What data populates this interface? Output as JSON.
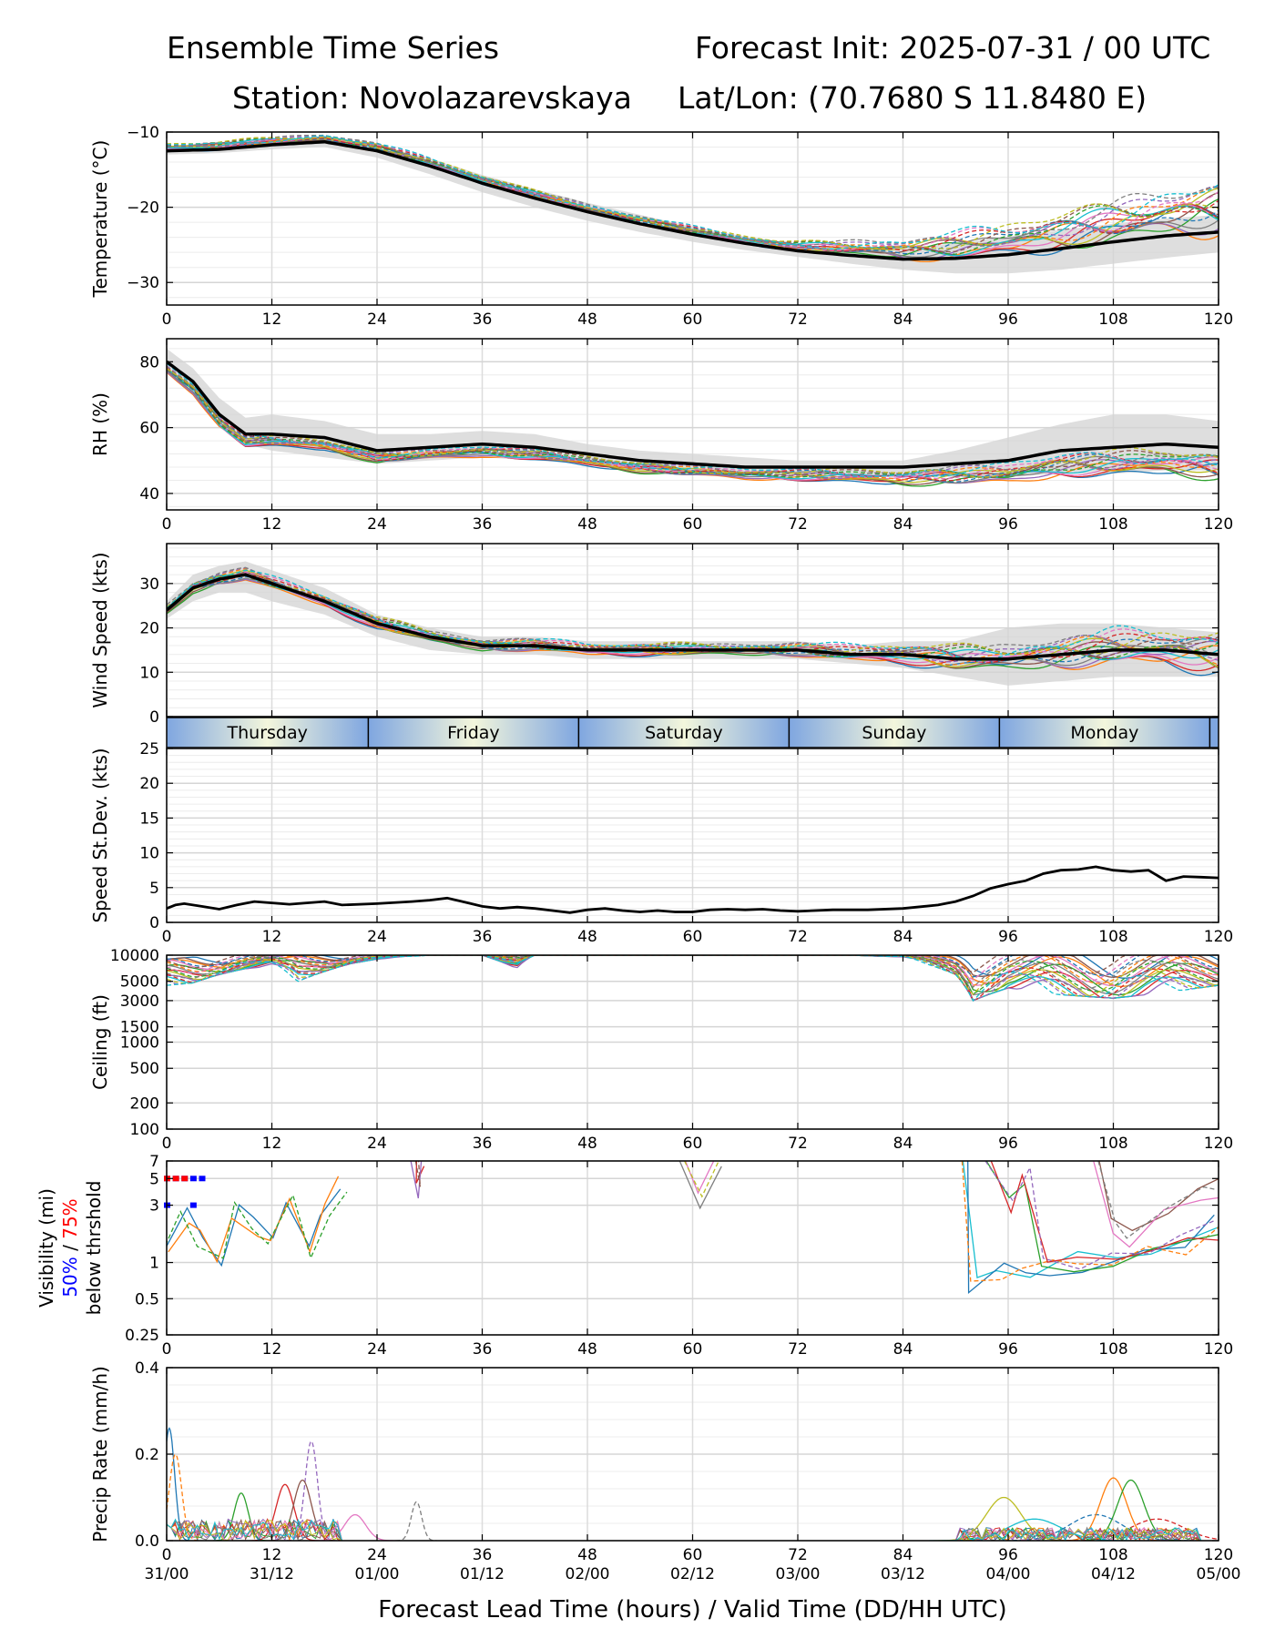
{
  "header": {
    "left_title": "Ensemble Time Series",
    "right_title": "Forecast Init: 2025-07-31 / 00 UTC",
    "station": "Station: Novolazarevskaya",
    "latlon": "Lat/Lon: (70.7680 S 11.8480 E)"
  },
  "colors": {
    "mean": "#000000",
    "spread_fill": "#d3d3d3",
    "members": [
      "#1f77b4",
      "#ff7f0e",
      "#2ca02c",
      "#d62728",
      "#9467bd",
      "#8c564b",
      "#e377c2",
      "#7f7f7f",
      "#bcbd22",
      "#17becf"
    ],
    "day_band_edge": "#7fa6e0",
    "day_band_mid": "#f3f6dc",
    "vis_50": "#0000ff",
    "vis_75": "#ff0000"
  },
  "x_axis": {
    "lead_ticks": [
      "0",
      "12",
      "24",
      "36",
      "48",
      "60",
      "72",
      "84",
      "96",
      "108",
      "120"
    ],
    "valid_ticks": [
      "31/00",
      "31/12",
      "01/00",
      "01/12",
      "02/00",
      "02/12",
      "03/00",
      "03/12",
      "04/00",
      "04/12",
      "05/00"
    ],
    "xlabel": "Forecast Lead Time (hours) / Valid Time (DD/HH UTC)"
  },
  "day_labels": [
    "Thursday",
    "Friday",
    "Saturday",
    "Sunday",
    "Monday"
  ],
  "visibility_legend": {
    "line1": "Visibility (mi)",
    "pct50": "50%",
    "sep": " / ",
    "pct75": "75%",
    "line3": "below thrshold"
  },
  "chart_data": [
    {
      "type": "line",
      "ylabel": "Temperature (°C)",
      "ylim": [
        -33,
        -10
      ],
      "yticks": [
        -30,
        -20,
        -10
      ],
      "ytick_labels": [
        "−30",
        "−20",
        "−10"
      ],
      "grid": true,
      "x": [
        0,
        6,
        12,
        18,
        24,
        30,
        36,
        42,
        48,
        54,
        60,
        66,
        72,
        78,
        84,
        90,
        96,
        102,
        108,
        114,
        120
      ],
      "mean": [
        -12.5,
        -12.3,
        -11.7,
        -11.3,
        -12.5,
        -14.5,
        -16.8,
        -18.8,
        -20.6,
        -22.2,
        -23.6,
        -24.8,
        -25.8,
        -26.4,
        -26.9,
        -26.8,
        -26.3,
        -25.5,
        -24.6,
        -23.8,
        -23.3
      ],
      "spread_low": [
        -13.0,
        -12.8,
        -12.3,
        -12.0,
        -13.4,
        -15.6,
        -18.0,
        -20.0,
        -21.8,
        -23.3,
        -24.6,
        -25.7,
        -26.6,
        -27.5,
        -28.3,
        -28.8,
        -28.8,
        -28.3,
        -27.5,
        -26.7,
        -26.0
      ],
      "spread_high": [
        -12.0,
        -11.8,
        -11.1,
        -10.7,
        -11.7,
        -13.5,
        -15.7,
        -17.6,
        -19.4,
        -21.0,
        -22.6,
        -23.9,
        -25.0,
        -25.4,
        -25.4,
        -24.8,
        -23.9,
        -23.0,
        -22.2,
        -21.5,
        -21.0
      ],
      "member_spread": 1.0,
      "member_spread_growth": 5.5
    },
    {
      "type": "line",
      "ylabel": "RH (%)",
      "ylim": [
        35,
        87
      ],
      "yticks": [
        40,
        60,
        80
      ],
      "ytick_labels": [
        "40",
        "60",
        "80"
      ],
      "grid": true,
      "x": [
        0,
        3,
        6,
        9,
        12,
        18,
        24,
        30,
        36,
        42,
        48,
        54,
        60,
        66,
        72,
        78,
        84,
        90,
        96,
        102,
        108,
        114,
        120
      ],
      "mean": [
        80,
        74,
        64,
        58,
        58,
        57,
        53,
        54,
        55,
        54,
        52,
        50,
        49,
        48,
        48,
        48,
        48,
        49,
        50,
        53,
        54,
        55,
        54
      ],
      "spread_low": [
        77,
        70,
        60,
        55,
        53,
        51,
        49,
        50,
        51,
        50,
        49,
        47,
        46,
        46,
        46,
        46,
        45,
        45,
        45,
        46,
        46,
        47,
        47
      ],
      "spread_high": [
        84,
        78,
        69,
        63,
        64,
        62,
        58,
        58,
        59,
        58,
        55,
        53,
        52,
        51,
        50,
        50,
        50,
        53,
        57,
        61,
        64,
        64,
        62
      ],
      "member_spread": 3.0,
      "member_spread_growth": 5.0
    },
    {
      "type": "line",
      "ylabel": "Wind Speed (kts)",
      "ylim": [
        0,
        39
      ],
      "yticks": [
        0,
        10,
        20,
        30
      ],
      "ytick_labels": [
        "0",
        "10",
        "20",
        "30"
      ],
      "grid": true,
      "x": [
        0,
        3,
        6,
        9,
        12,
        18,
        24,
        30,
        36,
        42,
        48,
        54,
        60,
        66,
        72,
        78,
        84,
        90,
        96,
        102,
        108,
        114,
        120
      ],
      "mean": [
        24,
        29,
        31,
        32,
        30,
        26,
        21,
        18,
        16,
        16,
        15,
        15,
        15,
        15,
        15,
        14,
        14,
        13,
        13,
        14,
        15,
        15,
        14
      ],
      "spread_low": [
        22,
        26,
        28,
        28,
        26,
        23,
        18,
        15,
        14,
        14,
        13,
        13,
        13,
        13,
        13,
        12,
        11,
        9,
        7,
        8,
        9,
        9,
        9
      ],
      "spread_high": [
        26,
        32,
        34,
        35,
        33,
        29,
        23,
        20,
        18,
        18,
        17,
        17,
        17,
        17,
        17,
        16,
        17,
        17,
        20,
        21,
        21,
        20,
        19
      ],
      "member_spread": 2.5,
      "member_spread_growth": 6.0
    },
    {
      "type": "line",
      "ylabel": "Speed St.Dev. (kts)",
      "ylim": [
        0,
        25
      ],
      "yticks": [
        0,
        5,
        10,
        15,
        20,
        25
      ],
      "ytick_labels": [
        "0",
        "5",
        "10",
        "15",
        "20",
        "25"
      ],
      "grid": true,
      "x": [
        0,
        1,
        2,
        4,
        6,
        8,
        10,
        12,
        14,
        16,
        18,
        20,
        24,
        28,
        30,
        32,
        34,
        36,
        38,
        40,
        42,
        44,
        46,
        48,
        50,
        52,
        54,
        56,
        58,
        60,
        62,
        64,
        66,
        68,
        70,
        72,
        76,
        80,
        84,
        88,
        90,
        92,
        94,
        96,
        98,
        100,
        102,
        104,
        106,
        108,
        110,
        112,
        114,
        116,
        118,
        120
      ],
      "values": [
        2.0,
        2.5,
        2.7,
        2.3,
        1.9,
        2.5,
        3.0,
        2.8,
        2.6,
        2.8,
        3.0,
        2.5,
        2.7,
        3.0,
        3.2,
        3.5,
        2.9,
        2.3,
        2.0,
        2.2,
        2.0,
        1.7,
        1.4,
        1.8,
        2.0,
        1.7,
        1.5,
        1.7,
        1.5,
        1.5,
        1.8,
        1.9,
        1.8,
        1.9,
        1.7,
        1.6,
        1.8,
        1.8,
        2.0,
        2.5,
        3.0,
        3.8,
        4.9,
        5.5,
        6.0,
        7.0,
        7.5,
        7.6,
        8.0,
        7.5,
        7.3,
        7.5,
        6.0,
        6.6,
        6.5,
        6.4
      ]
    },
    {
      "type": "line",
      "ylabel": "Ceiling (ft)",
      "ylim": [
        100,
        10000
      ],
      "log_scale": true,
      "yticks": [
        100,
        200,
        500,
        1000,
        1500,
        3000,
        5000,
        10000
      ],
      "ytick_labels": [
        "100",
        "200",
        "500",
        "1000",
        "1500",
        "3000",
        "5000",
        "10000"
      ],
      "grid": true,
      "x": [
        0,
        3,
        6,
        9,
        12,
        15,
        18,
        21,
        24,
        30,
        36,
        40,
        42,
        48,
        54,
        60,
        66,
        72,
        78,
        84,
        90,
        92,
        96,
        102,
        108,
        114,
        120
      ],
      "member_low": [
        4500,
        4800,
        6000,
        7000,
        7500,
        5000,
        6500,
        8000,
        9000,
        10000,
        10000,
        7000,
        10000,
        10000,
        10000,
        10000,
        10000,
        10000,
        10000,
        9500,
        6000,
        3000,
        4200,
        3500,
        3200,
        3700,
        4500
      ],
      "member_high": [
        9000,
        9500,
        10000,
        10000,
        10000,
        10000,
        10000,
        10000,
        10000,
        10000,
        10000,
        10000,
        10000,
        10000,
        10000,
        10000,
        10000,
        10000,
        10000,
        10000,
        10000,
        10000,
        10000,
        10000,
        10000,
        10000,
        10000
      ]
    },
    {
      "type": "line",
      "ylabel": "Visibility (mi)",
      "ylim": [
        0.25,
        7
      ],
      "log_scale": true,
      "yticks": [
        0.25,
        0.5,
        1,
        3,
        5,
        7
      ],
      "ytick_labels": [
        "0.25",
        "0.5",
        "1",
        "3",
        "5",
        "7"
      ],
      "grid": true,
      "threshold_markers": [
        {
          "pct": "50%",
          "x": [
            0,
            1,
            2,
            3,
            4
          ],
          "y": [
            5,
            5,
            5,
            5,
            5
          ]
        },
        {
          "pct": "50%",
          "x": [
            0,
            3
          ],
          "y": [
            3,
            3
          ]
        },
        {
          "pct": "75%",
          "x": [
            0,
            1,
            2
          ],
          "y": [
            5,
            5,
            5
          ]
        }
      ],
      "member_dips": [
        {
          "x": [
            0,
            2,
            4,
            6,
            8,
            10,
            12,
            14,
            16,
            18,
            20
          ],
          "y": [
            1.0,
            2.5,
            1.5,
            0.9,
            3.0,
            2.0,
            1.5,
            3.5,
            1.2,
            2.5,
            5.0
          ]
        },
        {
          "x": [
            28,
            28.5,
            29
          ],
          "y": [
            7,
            4.0,
            7
          ]
        },
        {
          "x": [
            59,
            61,
            63
          ],
          "y": [
            7,
            3.3,
            7
          ]
        },
        {
          "x": [
            91,
            92,
            95,
            98,
            101,
            104,
            108,
            112,
            116,
            120
          ],
          "y": [
            6,
            0.65,
            0.8,
            0.9,
            1.0,
            1.1,
            1.2,
            1.3,
            1.5,
            2.0
          ]
        },
        {
          "x": [
            94,
            96,
            98,
            100,
            104,
            108,
            112,
            116,
            120
          ],
          "y": [
            7,
            3.0,
            5.0,
            1.0,
            1.0,
            1.0,
            1.1,
            1.4,
            1.8
          ]
        },
        {
          "x": [
            106,
            108,
            110,
            114,
            118,
            120
          ],
          "y": [
            7,
            2.0,
            1.5,
            2.5,
            3.5,
            4.0
          ]
        }
      ]
    },
    {
      "type": "line",
      "ylabel": "Precip Rate (mm/h)",
      "ylim": [
        0,
        0.4
      ],
      "yticks": [
        0.0,
        0.2,
        0.4
      ],
      "ytick_labels": [
        "0.0",
        "0.2",
        "0.4"
      ],
      "grid": true,
      "member_peaks": [
        {
          "x": 0.3,
          "y": 0.26,
          "w": 0.6
        },
        {
          "x": 1.0,
          "y": 0.2,
          "w": 0.7
        },
        {
          "x": 8.5,
          "y": 0.11,
          "w": 0.8
        },
        {
          "x": 13.5,
          "y": 0.13,
          "w": 1.0
        },
        {
          "x": 16.5,
          "y": 0.23,
          "w": 0.7
        },
        {
          "x": 15.5,
          "y": 0.14,
          "w": 1.0
        },
        {
          "x": 21.5,
          "y": 0.06,
          "w": 1.2
        },
        {
          "x": 28.5,
          "y": 0.09,
          "w": 0.6
        },
        {
          "x": 95.5,
          "y": 0.1,
          "w": 2.0
        },
        {
          "x": 99.0,
          "y": 0.05,
          "w": 3.0
        },
        {
          "x": 106.0,
          "y": 0.06,
          "w": 3.0
        },
        {
          "x": 108.0,
          "y": 0.145,
          "w": 1.5
        },
        {
          "x": 110.0,
          "y": 0.14,
          "w": 1.5
        },
        {
          "x": 113.0,
          "y": 0.05,
          "w": 3.0
        }
      ]
    }
  ]
}
